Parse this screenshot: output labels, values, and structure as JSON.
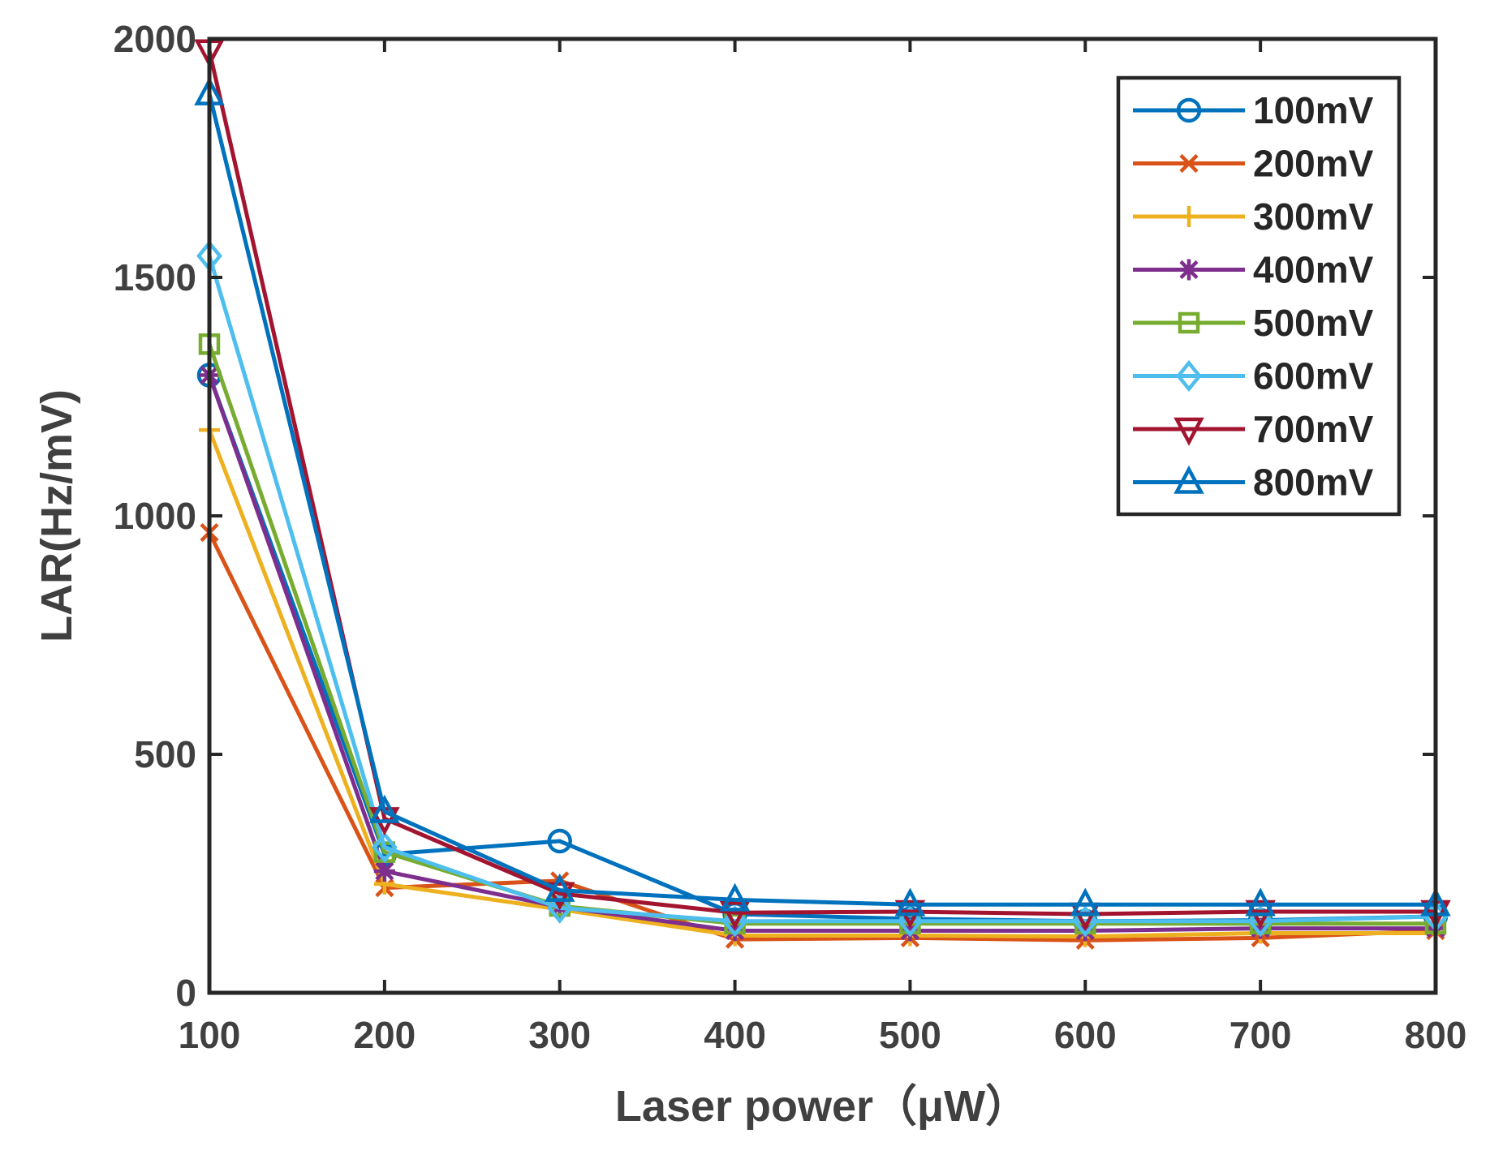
{
  "chart_data": {
    "type": "line",
    "title": "",
    "xlabel": "Laser power（μW）",
    "ylabel": "LAR(Hz/mV)",
    "x": [
      100,
      200,
      300,
      400,
      500,
      600,
      700,
      800
    ],
    "xlim": [
      100,
      800
    ],
    "ylim": [
      0,
      2000
    ],
    "xticks": [
      "100",
      "200",
      "300",
      "400",
      "500",
      "600",
      "700",
      "800"
    ],
    "yticks": [
      "0",
      "500",
      "1000",
      "1500",
      "2000"
    ],
    "grid": false,
    "legend_position": "top-right",
    "series": [
      {
        "name": "100mV",
        "color": "#0072BD",
        "marker": "circle",
        "values": [
          1295,
          290,
          318,
          165,
          155,
          150,
          152,
          160
        ]
      },
      {
        "name": "200mV",
        "color": "#D95319",
        "marker": "x",
        "values": [
          965,
          220,
          235,
          112,
          115,
          110,
          115,
          130
        ]
      },
      {
        "name": "300mV",
        "color": "#EDB120",
        "marker": "plus",
        "values": [
          1180,
          228,
          175,
          120,
          120,
          118,
          125,
          125
        ]
      },
      {
        "name": "400mV",
        "color": "#7E2F8E",
        "marker": "asterisk",
        "values": [
          1295,
          255,
          180,
          130,
          130,
          130,
          135,
          135
        ]
      },
      {
        "name": "500mV",
        "color": "#77AC30",
        "marker": "square",
        "values": [
          1360,
          295,
          182,
          145,
          145,
          145,
          145,
          145
        ]
      },
      {
        "name": "600mV",
        "color": "#4DBEEE",
        "marker": "diamond",
        "values": [
          1545,
          305,
          178,
          150,
          150,
          150,
          150,
          160
        ]
      },
      {
        "name": "700mV",
        "color": "#A2142F",
        "marker": "triangle-down",
        "values": [
          1975,
          365,
          208,
          168,
          170,
          165,
          170,
          170
        ]
      },
      {
        "name": "800mV",
        "color": "#0072BD",
        "marker": "triangle-up",
        "values": [
          1885,
          380,
          215,
          195,
          185,
          185,
          185,
          185
        ]
      }
    ]
  }
}
